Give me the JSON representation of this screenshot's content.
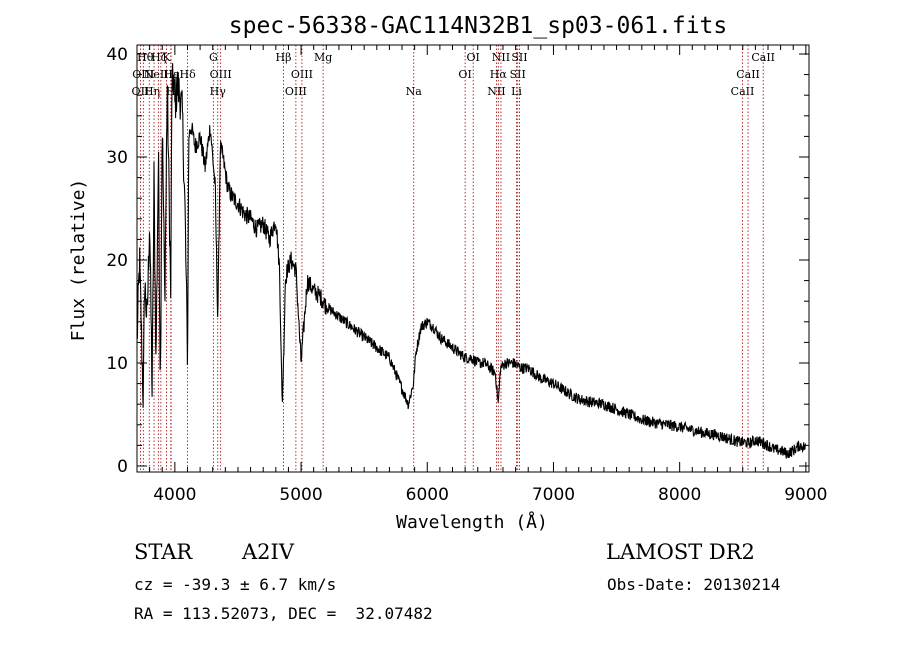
{
  "chart_data": {
    "type": "line",
    "title": "spec-56338-GAC114N32B1_sp03-061.fits",
    "xlabel": "Wavelength (Å)",
    "ylabel": "Flux (relative)",
    "xlim": [
      3700,
      9000
    ],
    "ylim": [
      0,
      40
    ],
    "x_ticks": [
      4000,
      5000,
      6000,
      7000,
      8000,
      9000
    ],
    "y_ticks": [
      0,
      10,
      20,
      30,
      40
    ],
    "grid": false,
    "series": [
      {
        "x": [
          3700,
          3720,
          3750,
          3760,
          3780,
          3800,
          3820,
          3835,
          3850,
          3870,
          3885,
          3900,
          3920,
          3940,
          3960,
          3968,
          3975,
          3990,
          4000,
          4020,
          4040,
          4060,
          4080,
          4101,
          4110,
          4130,
          4160,
          4200,
          4240,
          4280,
          4320,
          4340,
          4360,
          4380,
          4420,
          4460,
          4500,
          4550,
          4600,
          4650,
          4700,
          4750,
          4800,
          4830,
          4850,
          4861,
          4875,
          4890,
          4920,
          4960,
          5000,
          5050,
          5100,
          5150,
          5200,
          5300,
          5400,
          5500,
          5600,
          5700,
          5800,
          5850,
          5890,
          5910,
          5950,
          6000,
          6050,
          6100,
          6150,
          6200,
          6250,
          6300,
          6350,
          6400,
          6450,
          6500,
          6540,
          6563,
          6580,
          6620,
          6680,
          6750,
          6800,
          6900,
          7000,
          7100,
          7200,
          7300,
          7400,
          7500,
          7600,
          7700,
          7800,
          7900,
          8000,
          8100,
          8200,
          8300,
          8400,
          8450,
          8500,
          8550,
          8600,
          8650,
          8700,
          8750,
          8800,
          8850,
          8900,
          8950,
          9000
        ],
        "y": [
          12,
          20,
          6,
          18,
          14,
          24,
          7,
          28,
          10,
          30,
          8,
          34,
          16,
          37,
          22,
          16,
          36,
          38,
          35,
          37,
          36,
          34,
          25,
          10,
          32,
          33,
          31,
          32,
          29,
          33,
          27,
          14,
          31,
          30,
          27,
          26,
          25.5,
          24.5,
          24,
          23,
          23.5,
          22,
          24,
          19,
          6,
          10,
          18,
          19,
          20,
          19,
          10,
          18,
          17,
          16.5,
          15.5,
          14.5,
          13.5,
          12.5,
          11.5,
          10.5,
          7.5,
          6,
          8,
          11,
          13.5,
          14,
          13.5,
          12.5,
          12,
          11.5,
          11,
          10.5,
          10.5,
          10,
          10,
          9.5,
          9,
          6,
          9.5,
          10,
          10,
          9.5,
          9.5,
          8.5,
          8,
          7.2,
          6.5,
          6.2,
          6,
          5.5,
          5,
          4.5,
          4.2,
          4,
          3.8,
          3.5,
          3.2,
          3,
          2.6,
          2.4,
          2.3,
          2.2,
          2.5,
          2.3,
          2,
          1.6,
          1.5,
          1.2,
          1.5,
          2,
          1.8
        ]
      }
    ],
    "lines": [
      {
        "wl": 3727,
        "label": "OII",
        "row": 2,
        "dx": 0
      },
      {
        "wl": 3750,
        "label": "OIII",
        "row": 1,
        "dx": 0
      },
      {
        "wl": 3797,
        "label": "Hθ",
        "row": 0,
        "dx": -4
      },
      {
        "wl": 3835,
        "label": "Hη",
        "row": 2,
        "dx": -2
      },
      {
        "wl": 3869,
        "label": "NeIII",
        "row": 1,
        "dx": 0
      },
      {
        "wl": 3889,
        "label": "Hζ",
        "row": 0,
        "dx": -2
      },
      {
        "wl": 3934,
        "label": "K",
        "row": 0,
        "dx": 0
      },
      {
        "wl": 3968,
        "label": "H",
        "row": 2,
        "dx": 0
      },
      {
        "wl": 3970,
        "label": "Hε",
        "row": 1,
        "dx": 0
      },
      {
        "wl": 4101,
        "label": "Hδ",
        "row": 1,
        "dx": 0
      },
      {
        "wl": 4305,
        "label": "G",
        "row": 0,
        "dx": 0
      },
      {
        "wl": 4340,
        "label": "Hγ",
        "row": 2,
        "dx": 0
      },
      {
        "wl": 4363,
        "label": "OIII",
        "row": 1,
        "dx": 0
      },
      {
        "wl": 4861,
        "label": "Hβ",
        "row": 0,
        "dx": 0
      },
      {
        "wl": 4959,
        "label": "OIII",
        "row": 2,
        "dx": 0
      },
      {
        "wl": 5007,
        "label": "OIII",
        "row": 1,
        "dx": 0
      },
      {
        "wl": 5175,
        "label": "Mg",
        "row": 0,
        "dx": 0
      },
      {
        "wl": 5893,
        "label": "Na",
        "row": 2,
        "dx": 0
      },
      {
        "wl": 6300,
        "label": "OI",
        "row": 1,
        "dx": 0
      },
      {
        "wl": 6364,
        "label": "OI",
        "row": 0,
        "dx": 0
      },
      {
        "wl": 6548,
        "label": "NII",
        "row": 2,
        "dx": 0
      },
      {
        "wl": 6563,
        "label": "Hα",
        "row": 1,
        "dx": 0
      },
      {
        "wl": 6584,
        "label": "NII",
        "row": 0,
        "dx": 0
      },
      {
        "wl": 6707,
        "label": "Li",
        "row": 2,
        "dx": 0
      },
      {
        "wl": 6717,
        "label": "SII",
        "row": 1,
        "dx": 0
      },
      {
        "wl": 6731,
        "label": "SII",
        "row": 0,
        "dx": 0
      },
      {
        "wl": 8498,
        "label": "CaII",
        "row": 2,
        "dx": 0
      },
      {
        "wl": 8542,
        "label": "CaII",
        "row": 1,
        "dx": 0
      },
      {
        "wl": 8662,
        "label": "CaII",
        "row": 0,
        "dx": 0
      }
    ],
    "colors": {
      "spectrum": "#000000",
      "lines": "#a00000",
      "axes": "#000000"
    }
  },
  "info": {
    "object_type": "STAR",
    "subclass": "A2IV",
    "survey": "LAMOST DR2",
    "cz": "cz = -39.3 ± 6.7 km/s",
    "obs_date": "Obs-Date: 20130214",
    "coords": "RA = 113.52073, DEC =  32.07482"
  }
}
